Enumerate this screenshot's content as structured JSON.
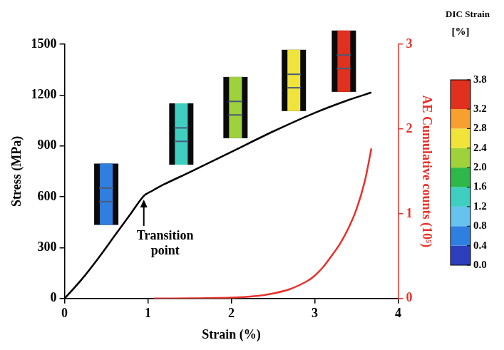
{
  "chart_data": {
    "type": "line",
    "x_label": "Strain (%)",
    "y_label": "Stress (MPa)",
    "y2_label": "AE Cumulative counts (10⁵)",
    "xlim": [
      0,
      4
    ],
    "xticks": [
      0,
      1,
      2,
      3,
      4
    ],
    "ylim": [
      0,
      1500
    ],
    "yticks": [
      0,
      300,
      600,
      900,
      1200,
      1500
    ],
    "y2lim": [
      0,
      3
    ],
    "y2ticks": [
      0,
      1,
      2,
      3
    ],
    "grid": false,
    "series": [
      {
        "name": "Stress",
        "color": "#000000",
        "marker": "none",
        "line_style": "solid",
        "x": [
          0,
          0.2,
          0.4,
          0.6,
          0.8,
          0.95,
          1.05,
          1.2,
          1.5,
          2.0,
          2.5,
          3.0,
          3.4,
          3.68
        ],
        "values": [
          0,
          110,
          235,
          370,
          505,
          605,
          635,
          675,
          745,
          865,
          985,
          1095,
          1170,
          1215
        ]
      },
      {
        "name": "AE",
        "color": "#e8312a",
        "marker": "none",
        "line_style": "solid",
        "axis": "y2",
        "x": [
          1.07,
          1.5,
          2.0,
          2.3,
          2.5,
          2.7,
          2.9,
          3.0,
          3.1,
          3.2,
          3.3,
          3.4,
          3.5,
          3.6,
          3.68
        ],
        "values": [
          0,
          0.002,
          0.01,
          0.03,
          0.06,
          0.11,
          0.2,
          0.27,
          0.37,
          0.5,
          0.64,
          0.82,
          1.05,
          1.38,
          1.77
        ]
      }
    ],
    "annotations": [
      {
        "text": "Transition point",
        "x": 0.95,
        "y": 605
      }
    ],
    "dic_snapshot_strains": [
      0.5,
      1.4,
      2.05,
      2.75,
      3.35
    ],
    "colorbar": {
      "title": "DIC Strain",
      "unit": "[%]",
      "range": [
        0,
        3.8
      ],
      "ticks": [
        {
          "value": 0,
          "label": "0.0"
        },
        0.4,
        0.8,
        1.2,
        1.6,
        {
          "value": 2,
          "label": "2.0"
        },
        2.4,
        2.8,
        3.2,
        3.8
      ],
      "colors": [
        "#2b3fbf",
        "#2f7fe0",
        "#66c2ee",
        "#3fcfc0",
        "#2fb84a",
        "#9ed13a",
        "#f0e43a",
        "#f7a030",
        "#e0301e"
      ]
    }
  }
}
